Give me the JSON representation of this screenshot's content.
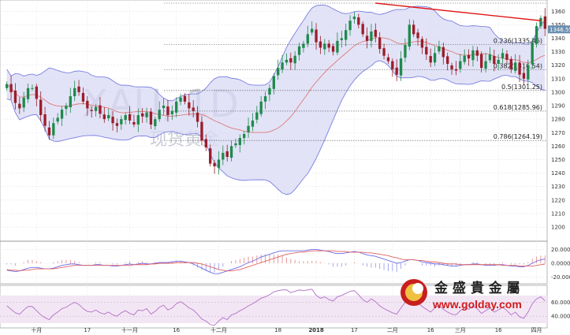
{
  "watermark": {
    "symbol": "XAU, 1D",
    "subtitle": "现货黄金"
  },
  "last_price_label": "1346.55",
  "brand": {
    "name": "金 盛 貴 金 屬",
    "url": "www.golday.com"
  },
  "colors": {
    "up": "#1f8a4c",
    "down": "#9b1d2a",
    "band": "#7b7fe0",
    "band_fill": "#d8daf4",
    "ma": "#e07a7a",
    "trend": "#e01818",
    "macd": "#6a6ae8",
    "signal": "#e06060",
    "rsi": "#b070c8",
    "rsi_bg": "#f3e6f4",
    "price_tag": "#6b8fb0"
  },
  "chart_data": [
    {
      "type": "candlestick",
      "title": "",
      "x_labels": [
        "十月",
        "17",
        "十一月",
        "16",
        "十二月",
        "18",
        "2018",
        "17",
        "二月",
        "16",
        "三月",
        "16",
        "四月"
      ],
      "y_ticks": [
        1200,
        1210,
        1220,
        1230,
        1240,
        1250,
        1260,
        1270,
        1280,
        1290,
        1300,
        1310,
        1320,
        1330,
        1340,
        1350,
        1360
      ],
      "ylim": [
        1193,
        1366
      ],
      "fib_levels": [
        {
          "label": "0.236(1335.46)",
          "value": 1335.46
        },
        {
          "label": "0.382(1316.54)",
          "value": 1316.54
        },
        {
          "label": "0.5(1301.25)",
          "value": 1301.25
        },
        {
          "label": "0.618(1285.96)",
          "value": 1285.96
        },
        {
          "label": "0.786(1264.19)",
          "value": 1264.19
        }
      ],
      "fib_top": 1366,
      "trendline": {
        "from": [
          87,
          1366
        ],
        "to": [
          126,
          1353
        ]
      },
      "last_price": 1346.55,
      "closes": [
        1306,
        1300,
        1292,
        1288,
        1296,
        1303,
        1303,
        1295,
        1283,
        1275,
        1268,
        1277,
        1281,
        1287,
        1290,
        1297,
        1303,
        1300,
        1293,
        1288,
        1286,
        1289,
        1284,
        1280,
        1283,
        1277,
        1275,
        1280,
        1283,
        1279,
        1276,
        1283,
        1282,
        1285,
        1276,
        1280,
        1287,
        1290,
        1283,
        1286,
        1293,
        1296,
        1293,
        1288,
        1286,
        1278,
        1264,
        1259,
        1247,
        1245,
        1250,
        1255,
        1252,
        1260,
        1262,
        1266,
        1269,
        1275,
        1279,
        1285,
        1293,
        1297,
        1303,
        1312,
        1318,
        1322,
        1324,
        1322,
        1327,
        1334,
        1336,
        1343,
        1347,
        1337,
        1333,
        1336,
        1333,
        1330,
        1338,
        1340,
        1346,
        1353,
        1356,
        1350,
        1343,
        1338,
        1345,
        1341,
        1332,
        1327,
        1323,
        1317,
        1313,
        1325,
        1335,
        1350,
        1343,
        1340,
        1333,
        1328,
        1322,
        1329,
        1334,
        1326,
        1321,
        1317,
        1316,
        1323,
        1327,
        1325,
        1331,
        1327,
        1318,
        1323,
        1328,
        1321,
        1324,
        1329,
        1324,
        1317,
        1322,
        1313,
        1310,
        1320,
        1337,
        1349,
        1355,
        1347
      ]
    },
    {
      "type": "line",
      "title": "",
      "y_ticks": [
        -20,
        0,
        20
      ],
      "ylim": [
        -25,
        25
      ],
      "tick_labels": [
        "-20.0000",
        "0.0000",
        "20.0000"
      ],
      "macd": [
        -10,
        -11,
        -12,
        -11,
        -9,
        -7,
        -6,
        -6,
        -7,
        -8,
        -8,
        -7,
        -5,
        -3,
        -2,
        -1,
        -1,
        -2,
        -3,
        -3,
        -3,
        -2,
        -2,
        -3,
        -3,
        -4,
        -4,
        -3,
        -2,
        -1,
        -2,
        -1,
        0,
        -1,
        -1,
        0,
        1,
        1,
        1,
        2,
        3,
        3,
        2,
        1,
        -1,
        -4,
        -7,
        -10,
        -13,
        -15,
        -15,
        -13,
        -11,
        -9,
        -7,
        -5,
        -2,
        1,
        3,
        6,
        9,
        11,
        13,
        15,
        17,
        18,
        18,
        18,
        18,
        18,
        18,
        19,
        20,
        20,
        19,
        18,
        17,
        15,
        14,
        14,
        15,
        16,
        17,
        16,
        14,
        12,
        11,
        10,
        8,
        6,
        4,
        2,
        0,
        1,
        3,
        5,
        5,
        4,
        2,
        1,
        0,
        -1,
        -1,
        -2,
        -3,
        -4,
        -4,
        -3,
        -2,
        -2,
        -1,
        -1,
        -2,
        -3,
        -3,
        -3,
        -2,
        -2,
        -3,
        -4,
        -4,
        -5,
        -5,
        -3,
        0,
        3,
        5,
        6
      ],
      "signal": [
        -9,
        -10,
        -10,
        -11,
        -10,
        -10,
        -9,
        -8,
        -8,
        -8,
        -8,
        -8,
        -7,
        -6,
        -5,
        -4,
        -3,
        -3,
        -3,
        -3,
        -3,
        -3,
        -3,
        -3,
        -3,
        -3,
        -3,
        -3,
        -3,
        -3,
        -2,
        -2,
        -2,
        -2,
        -1,
        -1,
        0,
        0,
        0,
        0,
        1,
        1,
        1,
        1,
        1,
        0,
        -1,
        -3,
        -5,
        -7,
        -9,
        -10,
        -11,
        -11,
        -10,
        -9,
        -7,
        -5,
        -3,
        -1,
        1,
        3,
        5,
        7,
        9,
        11,
        13,
        14,
        15,
        16,
        16,
        17,
        18,
        18,
        18,
        18,
        18,
        18,
        17,
        17,
        17,
        16,
        16,
        16,
        16,
        15,
        15,
        14,
        13,
        12,
        11,
        9,
        8,
        6,
        5,
        5,
        5,
        4,
        4,
        3,
        2,
        2,
        1,
        0,
        -1,
        -1,
        -1,
        -2,
        -2,
        -2,
        -2,
        -2,
        -2,
        -2,
        -2,
        -2,
        -2,
        -3,
        -3,
        -3,
        -3,
        -4,
        -4,
        -4,
        -4,
        -3,
        -2,
        -1
      ]
    },
    {
      "type": "line",
      "title": "",
      "y_ticks": [
        40,
        60
      ],
      "ylim": [
        30,
        80
      ],
      "tick_labels": [
        "40.0000",
        "60.0000"
      ],
      "rsi": [
        55,
        50,
        45,
        43,
        49,
        54,
        54,
        48,
        42,
        38,
        35,
        42,
        46,
        51,
        53,
        57,
        60,
        57,
        51,
        47,
        46,
        49,
        45,
        43,
        46,
        42,
        40,
        45,
        48,
        44,
        42,
        49,
        48,
        51,
        43,
        47,
        53,
        56,
        49,
        52,
        58,
        61,
        57,
        52,
        49,
        43,
        36,
        33,
        28,
        27,
        33,
        38,
        35,
        42,
        44,
        48,
        51,
        55,
        58,
        62,
        66,
        68,
        71,
        75,
        77,
        78,
        78,
        74,
        76,
        78,
        77,
        78,
        79,
        70,
        66,
        68,
        64,
        62,
        68,
        70,
        73,
        76,
        77,
        71,
        64,
        60,
        65,
        61,
        55,
        51,
        48,
        45,
        43,
        52,
        60,
        68,
        63,
        60,
        54,
        50,
        46,
        52,
        56,
        50,
        46,
        43,
        42,
        48,
        52,
        50,
        55,
        51,
        44,
        48,
        52,
        46,
        49,
        53,
        48,
        42,
        46,
        39,
        37,
        46,
        58,
        65,
        68,
        62
      ]
    }
  ]
}
